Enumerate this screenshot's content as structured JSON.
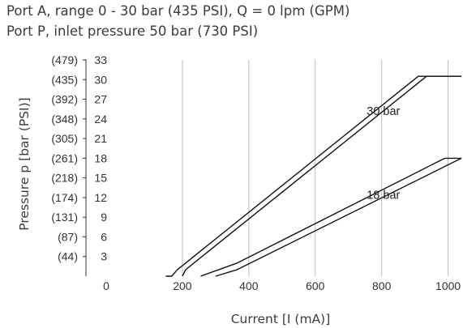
{
  "header": {
    "line1": "Port A, range 0 - 30 bar (435 PSI),  Q = 0 lpm (GPM)",
    "line2": "Port P, inlet pressure 50 bar (730 PSI)"
  },
  "chart_data": {
    "type": "line",
    "title": "Port A, range 0 - 30 bar (435 PSI),  Q = 0 lpm (GPM)",
    "subtitle": "Port P, inlet pressure 50 bar (730 PSI)",
    "xlabel": "Current [I (mA)]",
    "ylabel": "Pressure p [bar (PSI)]",
    "xlim": [
      0,
      1040
    ],
    "ylim": [
      0,
      33
    ],
    "x_ticks": [
      0,
      200,
      400,
      600,
      800,
      1000
    ],
    "y_ticks": [
      3,
      6,
      9,
      12,
      15,
      18,
      21,
      24,
      27,
      30,
      33
    ],
    "y_ticks_psi": [
      "(44)",
      "(87)",
      "(131)",
      "(174)",
      "(218)",
      "(261)",
      "(305)",
      "(348)",
      "(392)",
      "(435)",
      "(479)"
    ],
    "grid": "vertical",
    "annotations": [
      "30 bar",
      "18 bar"
    ],
    "series": [
      {
        "points": [
          [
            150,
            0
          ],
          [
            168,
            0
          ],
          [
            185,
            1
          ],
          [
            910,
            30.5
          ],
          [
            1040,
            30.5
          ]
        ]
      },
      {
        "points": [
          [
            200,
            0
          ],
          [
            210,
            1
          ],
          [
            935,
            30.5
          ],
          [
            1040,
            30.5
          ]
        ]
      },
      {
        "points": [
          [
            255,
            0
          ],
          [
            365,
            2
          ],
          [
            990,
            18
          ],
          [
            1040,
            18
          ]
        ]
      },
      {
        "points": [
          [
            300,
            0
          ],
          [
            365,
            1
          ],
          [
            1040,
            18
          ]
        ]
      }
    ],
    "colors": {
      "line": "#111111",
      "grid": "#bdbdbd",
      "axis": "#333333"
    }
  }
}
